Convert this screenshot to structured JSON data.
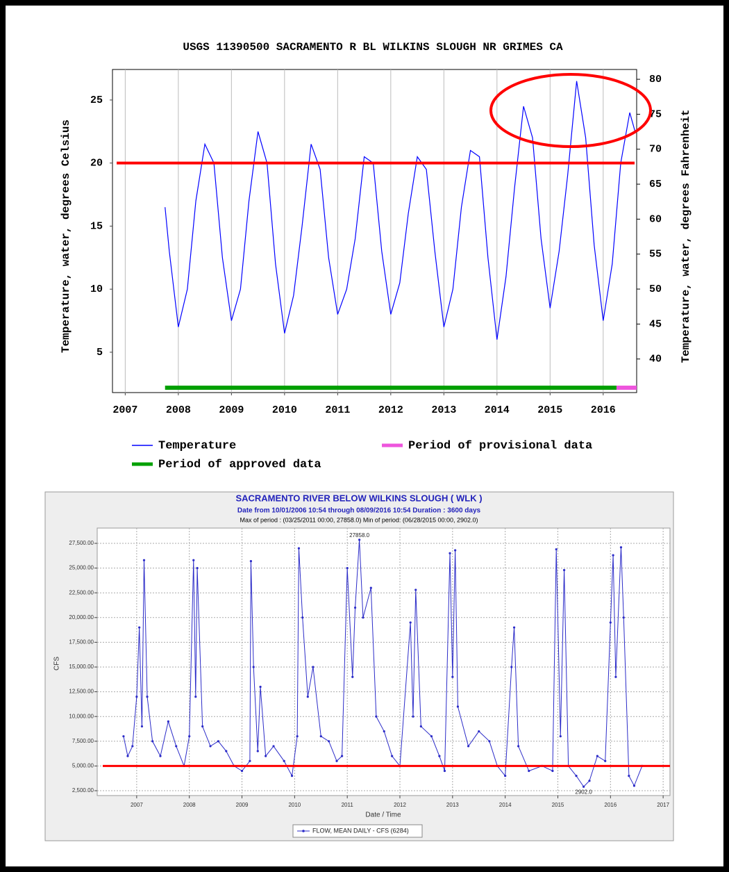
{
  "chart_data": [
    {
      "type": "line",
      "title": "USGS 11390500 SACRAMENTO R BL WILKINS SLOUGH NR GRIMES CA",
      "y_label": "Temperature, water, degrees Celsius",
      "y2_label": "Temperature, water, degrees Fahrenheit",
      "x": [
        2007.75,
        2007.83,
        2008.0,
        2008.17,
        2008.33,
        2008.5,
        2008.67,
        2008.83,
        2009.0,
        2009.17,
        2009.33,
        2009.5,
        2009.67,
        2009.83,
        2010.0,
        2010.17,
        2010.33,
        2010.5,
        2010.67,
        2010.83,
        2011.0,
        2011.17,
        2011.33,
        2011.5,
        2011.67,
        2011.83,
        2012.0,
        2012.17,
        2012.33,
        2012.5,
        2012.67,
        2012.83,
        2013.0,
        2013.17,
        2013.33,
        2013.5,
        2013.67,
        2013.83,
        2014.0,
        2014.17,
        2014.33,
        2014.5,
        2014.67,
        2014.83,
        2015.0,
        2015.17,
        2015.33,
        2015.5,
        2015.67,
        2015.83,
        2016.0,
        2016.17,
        2016.33,
        2016.5,
        2016.6
      ],
      "series": [
        {
          "name": "Temperature",
          "color": "#0000ff",
          "values": [
            16.5,
            13,
            7,
            10,
            17,
            21.5,
            20,
            12.5,
            7.5,
            10,
            17,
            22.5,
            20,
            12,
            6.5,
            9.5,
            15,
            21.5,
            19.5,
            12.5,
            8,
            10,
            14,
            20.5,
            20,
            13,
            8,
            10.5,
            16,
            20.5,
            19.5,
            13,
            7,
            10,
            16.5,
            21,
            20.5,
            12.5,
            6,
            11,
            18,
            24.5,
            22,
            14,
            8.5,
            13,
            19,
            26.5,
            22,
            13.5,
            7.5,
            12,
            20,
            24,
            22.5
          ]
        }
      ],
      "periods": [
        {
          "name": "Period of provisional data",
          "color": "#ee55dd",
          "xrange": [
            2016.25,
            2016.63
          ]
        },
        {
          "name": "Period of approved data",
          "color": "#00a000",
          "xrange": [
            2007.75,
            2016.25
          ]
        }
      ],
      "reference_line": {
        "value": 20,
        "color": "#ff0000"
      },
      "xlim": [
        2006.76,
        2016.63
      ],
      "xticks": [
        2007,
        2008,
        2009,
        2010,
        2011,
        2012,
        2013,
        2014,
        2015,
        2016
      ],
      "ylim": [
        1.8,
        27.42
      ],
      "yticks": [
        5,
        10,
        15,
        20,
        25
      ],
      "y2lim": [
        35.2,
        81.4
      ],
      "y2ticks": [
        40,
        45,
        50,
        55,
        60,
        65,
        70,
        75,
        80
      ],
      "grid": "x"
    },
    {
      "type": "line",
      "title": "SACRAMENTO RIVER BELOW WILKINS SLOUGH ( WLK )",
      "subtitle": "Date from 10/01/2006 10:54 through 08/09/2016 10:54 Duration : 3600 days",
      "note": "Max of period : (03/25/2011 00:00, 27858.0)  Min of period: (06/28/2015 00:00,  2902.0)",
      "x_label": "Date / Time",
      "y_label": "CFS",
      "x": [
        2006.75,
        2006.83,
        2006.92,
        2007.0,
        2007.05,
        2007.1,
        2007.14,
        2007.2,
        2007.3,
        2007.45,
        2007.6,
        2007.75,
        2007.9,
        2008.0,
        2008.08,
        2008.12,
        2008.15,
        2008.25,
        2008.4,
        2008.55,
        2008.7,
        2008.85,
        2009.0,
        2009.15,
        2009.17,
        2009.22,
        2009.3,
        2009.35,
        2009.45,
        2009.6,
        2009.8,
        2009.95,
        2010.05,
        2010.08,
        2010.15,
        2010.25,
        2010.35,
        2010.5,
        2010.65,
        2010.8,
        2010.9,
        2011.0,
        2011.1,
        2011.15,
        2011.23,
        2011.3,
        2011.45,
        2011.55,
        2011.7,
        2011.85,
        2012.0,
        2012.2,
        2012.25,
        2012.3,
        2012.4,
        2012.6,
        2012.75,
        2012.85,
        2012.95,
        2013.0,
        2013.05,
        2013.1,
        2013.3,
        2013.5,
        2013.7,
        2013.85,
        2014.0,
        2014.12,
        2014.17,
        2014.25,
        2014.45,
        2014.7,
        2014.9,
        2014.97,
        2015.05,
        2015.12,
        2015.2,
        2015.35,
        2015.49,
        2015.6,
        2015.75,
        2015.9,
        2016.0,
        2016.05,
        2016.1,
        2016.2,
        2016.25,
        2016.35,
        2016.45,
        2016.6
      ],
      "series": [
        {
          "name": "FLOW, MEAN DAILY - CFS (6284)",
          "color": "#2b2bc8",
          "values": [
            8000,
            6000,
            7000,
            12000,
            19000,
            9000,
            25800,
            12000,
            7500,
            6000,
            9500,
            7000,
            5000,
            8000,
            25800,
            12000,
            25000,
            9000,
            7000,
            7500,
            6500,
            5000,
            4500,
            5500,
            25700,
            15000,
            6500,
            13000,
            6000,
            7000,
            5500,
            4000,
            8000,
            27000,
            20000,
            12000,
            15000,
            8000,
            7500,
            5500,
            6000,
            25000,
            14000,
            21000,
            27858,
            20000,
            23000,
            10000,
            8500,
            6000,
            5000,
            19500,
            10000,
            22800,
            9000,
            8000,
            6000,
            4500,
            26500,
            14000,
            26800,
            11000,
            7000,
            8500,
            7500,
            5000,
            4000,
            15000,
            19000,
            7000,
            4500,
            5000,
            4500,
            26900,
            8000,
            24800,
            5000,
            4000,
            2902,
            3500,
            6000,
            5500,
            19500,
            26300,
            14000,
            27100,
            20000,
            4000,
            3000,
            5000
          ]
        }
      ],
      "reference_line": {
        "value": 5000,
        "color": "#ff0000"
      },
      "annotations": [
        {
          "text": "27858.0",
          "x": 2011.23,
          "y": 27858
        },
        {
          "text": "2902.0",
          "x": 2015.49,
          "y": 2902
        }
      ],
      "xlim": [
        2006.25,
        2017.13
      ],
      "xticks": [
        2007,
        2008,
        2009,
        2010,
        2011,
        2012,
        2013,
        2014,
        2015,
        2016,
        2017
      ],
      "ylim": [
        2008,
        29045
      ],
      "yticks": [
        {
          "value": 2500,
          "label": "2,500.00"
        },
        {
          "value": 5000,
          "label": "5,000.00"
        },
        {
          "value": 7500,
          "label": "7,500.00"
        },
        {
          "value": 10000,
          "label": "10,000.00"
        },
        {
          "value": 12500,
          "label": "12,500.00"
        },
        {
          "value": 15000,
          "label": "15,000.00"
        },
        {
          "value": 17500,
          "label": "17,500.00"
        },
        {
          "value": 20000,
          "label": "20,000.00"
        },
        {
          "value": 22500,
          "label": "22,500.00"
        },
        {
          "value": 25000,
          "label": "25,000.00"
        },
        {
          "value": 27500,
          "label": "27,500.00"
        }
      ],
      "grid": "both",
      "markers": true
    }
  ]
}
